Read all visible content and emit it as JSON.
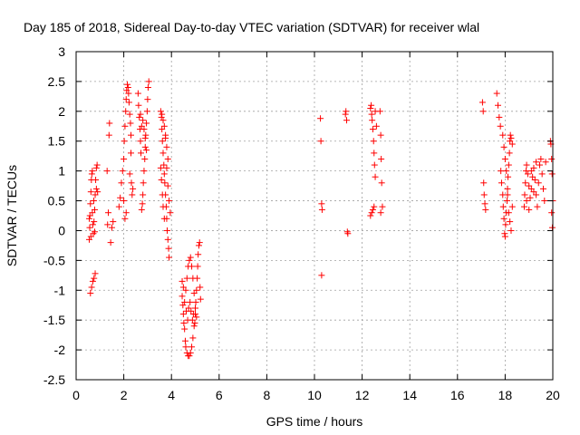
{
  "chart_data": {
    "type": "scatter",
    "title": "Day 185 of 2018, Sidereal Day-to-day VTEC variation (SDTVAR) for receiver wlal",
    "xlabel": "GPS time / hours",
    "ylabel": "SDTVAR / TECUs",
    "xlim": [
      0,
      20
    ],
    "ylim": [
      -2.5,
      3
    ],
    "xticks": [
      0,
      2,
      4,
      6,
      8,
      10,
      12,
      14,
      16,
      18,
      20
    ],
    "xtick_labels": [
      "0",
      "2",
      "4",
      "6",
      "8",
      "10",
      "12",
      "14",
      "16",
      "18",
      "20"
    ],
    "yticks": [
      -2.5,
      -2,
      -1.5,
      -1,
      -0.5,
      0,
      0.5,
      1,
      1.5,
      2,
      2.5,
      3
    ],
    "ytick_labels": [
      "-2.5",
      "-2",
      "-1.5",
      "-1",
      "-0.5",
      "0",
      "0.5",
      "1",
      "1.5",
      "2",
      "2.5",
      "3"
    ],
    "grid": true,
    "marker": "+",
    "color": "#ff0000",
    "series": [
      {
        "name": "SDTVAR",
        "points": [
          [
            0.55,
            -0.15
          ],
          [
            0.57,
            0.05
          ],
          [
            0.58,
            0.25
          ],
          [
            0.6,
            0.45
          ],
          [
            0.62,
            0.65
          ],
          [
            0.64,
            0.85
          ],
          [
            0.66,
            0.95
          ],
          [
            0.68,
            1.0
          ],
          [
            0.7,
            0.1
          ],
          [
            0.72,
            -0.05
          ],
          [
            0.75,
            0.15
          ],
          [
            0.78,
            0.35
          ],
          [
            0.8,
            0.6
          ],
          [
            0.82,
            0.85
          ],
          [
            0.85,
            1.05
          ],
          [
            0.88,
            1.1
          ],
          [
            0.6,
            -1.05
          ],
          [
            0.65,
            -0.95
          ],
          [
            0.7,
            -0.85
          ],
          [
            0.75,
            -0.8
          ],
          [
            0.8,
            -0.72
          ],
          [
            0.85,
            0.7
          ],
          [
            0.9,
            0.65
          ],
          [
            0.55,
            0.2
          ],
          [
            0.62,
            -0.1
          ],
          [
            0.68,
            0.3
          ],
          [
            0.74,
            0.5
          ],
          [
            0.78,
            -0.02
          ],
          [
            1.3,
            1.0
          ],
          [
            1.32,
            0.1
          ],
          [
            1.35,
            0.3
          ],
          [
            1.38,
            1.6
          ],
          [
            1.4,
            1.8
          ],
          [
            1.45,
            -0.2
          ],
          [
            1.5,
            0.05
          ],
          [
            1.55,
            0.15
          ],
          [
            1.8,
            0.4
          ],
          [
            1.85,
            0.55
          ],
          [
            1.9,
            0.8
          ],
          [
            1.95,
            1.0
          ],
          [
            2.0,
            1.2
          ],
          [
            2.02,
            1.5
          ],
          [
            2.05,
            1.75
          ],
          [
            2.08,
            2.0
          ],
          [
            2.1,
            2.2
          ],
          [
            2.12,
            2.35
          ],
          [
            2.15,
            2.45
          ],
          [
            2.18,
            2.4
          ],
          [
            2.2,
            2.3
          ],
          [
            2.22,
            2.15
          ],
          [
            2.25,
            1.95
          ],
          [
            2.28,
            1.8
          ],
          [
            2.3,
            1.6
          ],
          [
            2.32,
            0.8
          ],
          [
            2.35,
            0.6
          ],
          [
            2.38,
            0.7
          ],
          [
            2.0,
            0.5
          ],
          [
            2.05,
            0.2
          ],
          [
            2.1,
            0.3
          ],
          [
            2.25,
            0.95
          ],
          [
            2.3,
            1.3
          ],
          [
            2.6,
            2.3
          ],
          [
            2.62,
            2.1
          ],
          [
            2.65,
            1.9
          ],
          [
            2.68,
            1.7
          ],
          [
            2.7,
            1.5
          ],
          [
            2.72,
            1.3
          ],
          [
            2.75,
            0.35
          ],
          [
            2.78,
            0.45
          ],
          [
            2.8,
            0.6
          ],
          [
            2.82,
            0.8
          ],
          [
            2.85,
            1.0
          ],
          [
            2.88,
            1.2
          ],
          [
            2.9,
            1.4
          ],
          [
            2.92,
            1.6
          ],
          [
            2.95,
            1.8
          ],
          [
            2.98,
            2.0
          ],
          [
            3.0,
            2.2
          ],
          [
            3.02,
            2.4
          ],
          [
            3.05,
            2.5
          ],
          [
            2.7,
            1.95
          ],
          [
            2.75,
            1.75
          ],
          [
            2.8,
            1.85
          ],
          [
            2.85,
            1.7
          ],
          [
            2.9,
            1.55
          ],
          [
            2.95,
            1.35
          ],
          [
            3.55,
            2.0
          ],
          [
            3.58,
            1.9
          ],
          [
            3.6,
            1.7
          ],
          [
            3.62,
            1.5
          ],
          [
            3.65,
            1.3
          ],
          [
            3.68,
            1.1
          ],
          [
            3.7,
            0.95
          ],
          [
            3.72,
            0.8
          ],
          [
            3.75,
            0.6
          ],
          [
            3.78,
            0.4
          ],
          [
            3.8,
            0.2
          ],
          [
            3.82,
            0.0
          ],
          [
            3.85,
            -0.15
          ],
          [
            3.88,
            -0.3
          ],
          [
            3.9,
            -0.45
          ],
          [
            3.55,
            1.05
          ],
          [
            3.58,
            0.85
          ],
          [
            3.62,
            0.6
          ],
          [
            3.65,
            0.4
          ],
          [
            3.7,
            0.2
          ],
          [
            3.75,
            1.6
          ],
          [
            3.8,
            1.4
          ],
          [
            3.85,
            1.2
          ],
          [
            3.6,
            1.95
          ],
          [
            3.65,
            1.85
          ],
          [
            3.7,
            1.75
          ],
          [
            3.75,
            1.55
          ],
          [
            3.8,
            1.05
          ],
          [
            3.85,
            0.75
          ],
          [
            3.9,
            0.5
          ],
          [
            3.95,
            0.3
          ],
          [
            4.45,
            -1.1
          ],
          [
            4.48,
            -1.25
          ],
          [
            4.5,
            -1.4
          ],
          [
            4.52,
            -1.55
          ],
          [
            4.55,
            -1.65
          ],
          [
            4.58,
            -1.85
          ],
          [
            4.6,
            -1.95
          ],
          [
            4.65,
            -2.05
          ],
          [
            4.7,
            -2.1
          ],
          [
            4.75,
            -2.1
          ],
          [
            4.8,
            -2.05
          ],
          [
            4.85,
            -1.95
          ],
          [
            4.9,
            -1.8
          ],
          [
            4.95,
            -1.6
          ],
          [
            5.0,
            -1.4
          ],
          [
            5.02,
            -1.2
          ],
          [
            5.05,
            -1.0
          ],
          [
            5.08,
            -0.8
          ],
          [
            5.1,
            -0.6
          ],
          [
            5.12,
            -0.4
          ],
          [
            5.15,
            -0.25
          ],
          [
            5.18,
            -0.2
          ],
          [
            4.6,
            -1.0
          ],
          [
            4.65,
            -0.8
          ],
          [
            4.7,
            -0.6
          ],
          [
            4.75,
            -0.5
          ],
          [
            4.8,
            -0.45
          ],
          [
            4.85,
            -0.6
          ],
          [
            4.9,
            -0.8
          ],
          [
            4.95,
            -1.05
          ],
          [
            5.0,
            -1.3
          ],
          [
            5.05,
            -1.45
          ],
          [
            4.45,
            -0.85
          ],
          [
            4.5,
            -0.95
          ],
          [
            4.55,
            -1.2
          ],
          [
            4.62,
            -1.35
          ],
          [
            4.68,
            -1.5
          ],
          [
            4.72,
            -1.3
          ],
          [
            4.78,
            -1.2
          ],
          [
            4.82,
            -1.35
          ],
          [
            4.88,
            -1.5
          ],
          [
            4.92,
            -1.4
          ],
          [
            4.98,
            -1.55
          ],
          [
            5.2,
            -0.95
          ],
          [
            5.22,
            -1.15
          ],
          [
            10.25,
            1.88
          ],
          [
            10.27,
            1.5
          ],
          [
            10.3,
            0.45
          ],
          [
            10.32,
            0.35
          ],
          [
            10.3,
            -0.75
          ],
          [
            11.3,
            1.95
          ],
          [
            11.32,
            2.0
          ],
          [
            11.35,
            1.85
          ],
          [
            11.38,
            -0.02
          ],
          [
            11.4,
            -0.05
          ],
          [
            12.35,
            2.05
          ],
          [
            12.38,
            2.1
          ],
          [
            12.4,
            1.95
          ],
          [
            12.42,
            1.85
          ],
          [
            12.45,
            1.7
          ],
          [
            12.48,
            1.5
          ],
          [
            12.5,
            1.3
          ],
          [
            12.52,
            1.1
          ],
          [
            12.55,
            0.9
          ],
          [
            12.35,
            0.25
          ],
          [
            12.4,
            0.3
          ],
          [
            12.45,
            0.35
          ],
          [
            12.5,
            0.4
          ],
          [
            12.55,
            2.0
          ],
          [
            12.6,
            1.75
          ],
          [
            12.75,
            2.0
          ],
          [
            12.78,
            1.6
          ],
          [
            12.8,
            1.2
          ],
          [
            12.82,
            0.8
          ],
          [
            12.85,
            0.4
          ],
          [
            12.78,
            0.3
          ],
          [
            17.05,
            2.15
          ],
          [
            17.08,
            2.0
          ],
          [
            17.1,
            0.8
          ],
          [
            17.12,
            0.6
          ],
          [
            17.15,
            0.45
          ],
          [
            17.18,
            0.35
          ],
          [
            17.65,
            2.3
          ],
          [
            17.7,
            2.1
          ],
          [
            17.75,
            1.9
          ],
          [
            17.8,
            1.75
          ],
          [
            17.82,
            1.0
          ],
          [
            17.85,
            0.8
          ],
          [
            17.9,
            0.6
          ],
          [
            17.92,
            0.4
          ],
          [
            17.95,
            0.2
          ],
          [
            17.98,
            -0.05
          ],
          [
            18.0,
            -0.1
          ],
          [
            18.02,
            0.1
          ],
          [
            18.05,
            0.3
          ],
          [
            18.08,
            0.5
          ],
          [
            18.1,
            0.7
          ],
          [
            18.12,
            0.9
          ],
          [
            18.15,
            1.1
          ],
          [
            18.18,
            1.3
          ],
          [
            18.2,
            1.5
          ],
          [
            18.22,
            1.6
          ],
          [
            18.25,
            1.55
          ],
          [
            18.3,
            1.45
          ],
          [
            17.9,
            1.6
          ],
          [
            17.95,
            1.4
          ],
          [
            18.0,
            1.2
          ],
          [
            18.05,
            1.0
          ],
          [
            18.1,
            0.6
          ],
          [
            18.15,
            0.3
          ],
          [
            18.2,
            0.15
          ],
          [
            18.25,
            0.0
          ],
          [
            18.3,
            0.4
          ],
          [
            18.8,
            0.4
          ],
          [
            18.82,
            0.6
          ],
          [
            18.85,
            0.8
          ],
          [
            18.88,
            1.0
          ],
          [
            18.9,
            1.1
          ],
          [
            18.95,
            0.95
          ],
          [
            19.0,
            0.75
          ],
          [
            19.05,
            0.55
          ],
          [
            19.1,
            0.7
          ],
          [
            19.15,
            0.9
          ],
          [
            19.2,
            1.05
          ],
          [
            19.25,
            0.85
          ],
          [
            19.3,
            0.6
          ],
          [
            19.35,
            0.4
          ],
          [
            19.4,
            0.8
          ],
          [
            19.45,
            1.1
          ],
          [
            19.5,
            1.2
          ],
          [
            19.55,
            0.95
          ],
          [
            19.6,
            0.7
          ],
          [
            19.65,
            0.5
          ],
          [
            19.7,
            1.15
          ],
          [
            18.9,
            0.5
          ],
          [
            19.0,
            0.35
          ],
          [
            19.1,
            1.0
          ],
          [
            19.2,
            0.65
          ],
          [
            19.3,
            1.15
          ],
          [
            19.9,
            1.5
          ],
          [
            19.92,
            1.45
          ],
          [
            19.95,
            1.2
          ],
          [
            19.97,
            0.95
          ],
          [
            20.0,
            0.5
          ],
          [
            19.95,
            0.3
          ],
          [
            19.98,
            0.05
          ]
        ]
      }
    ]
  }
}
